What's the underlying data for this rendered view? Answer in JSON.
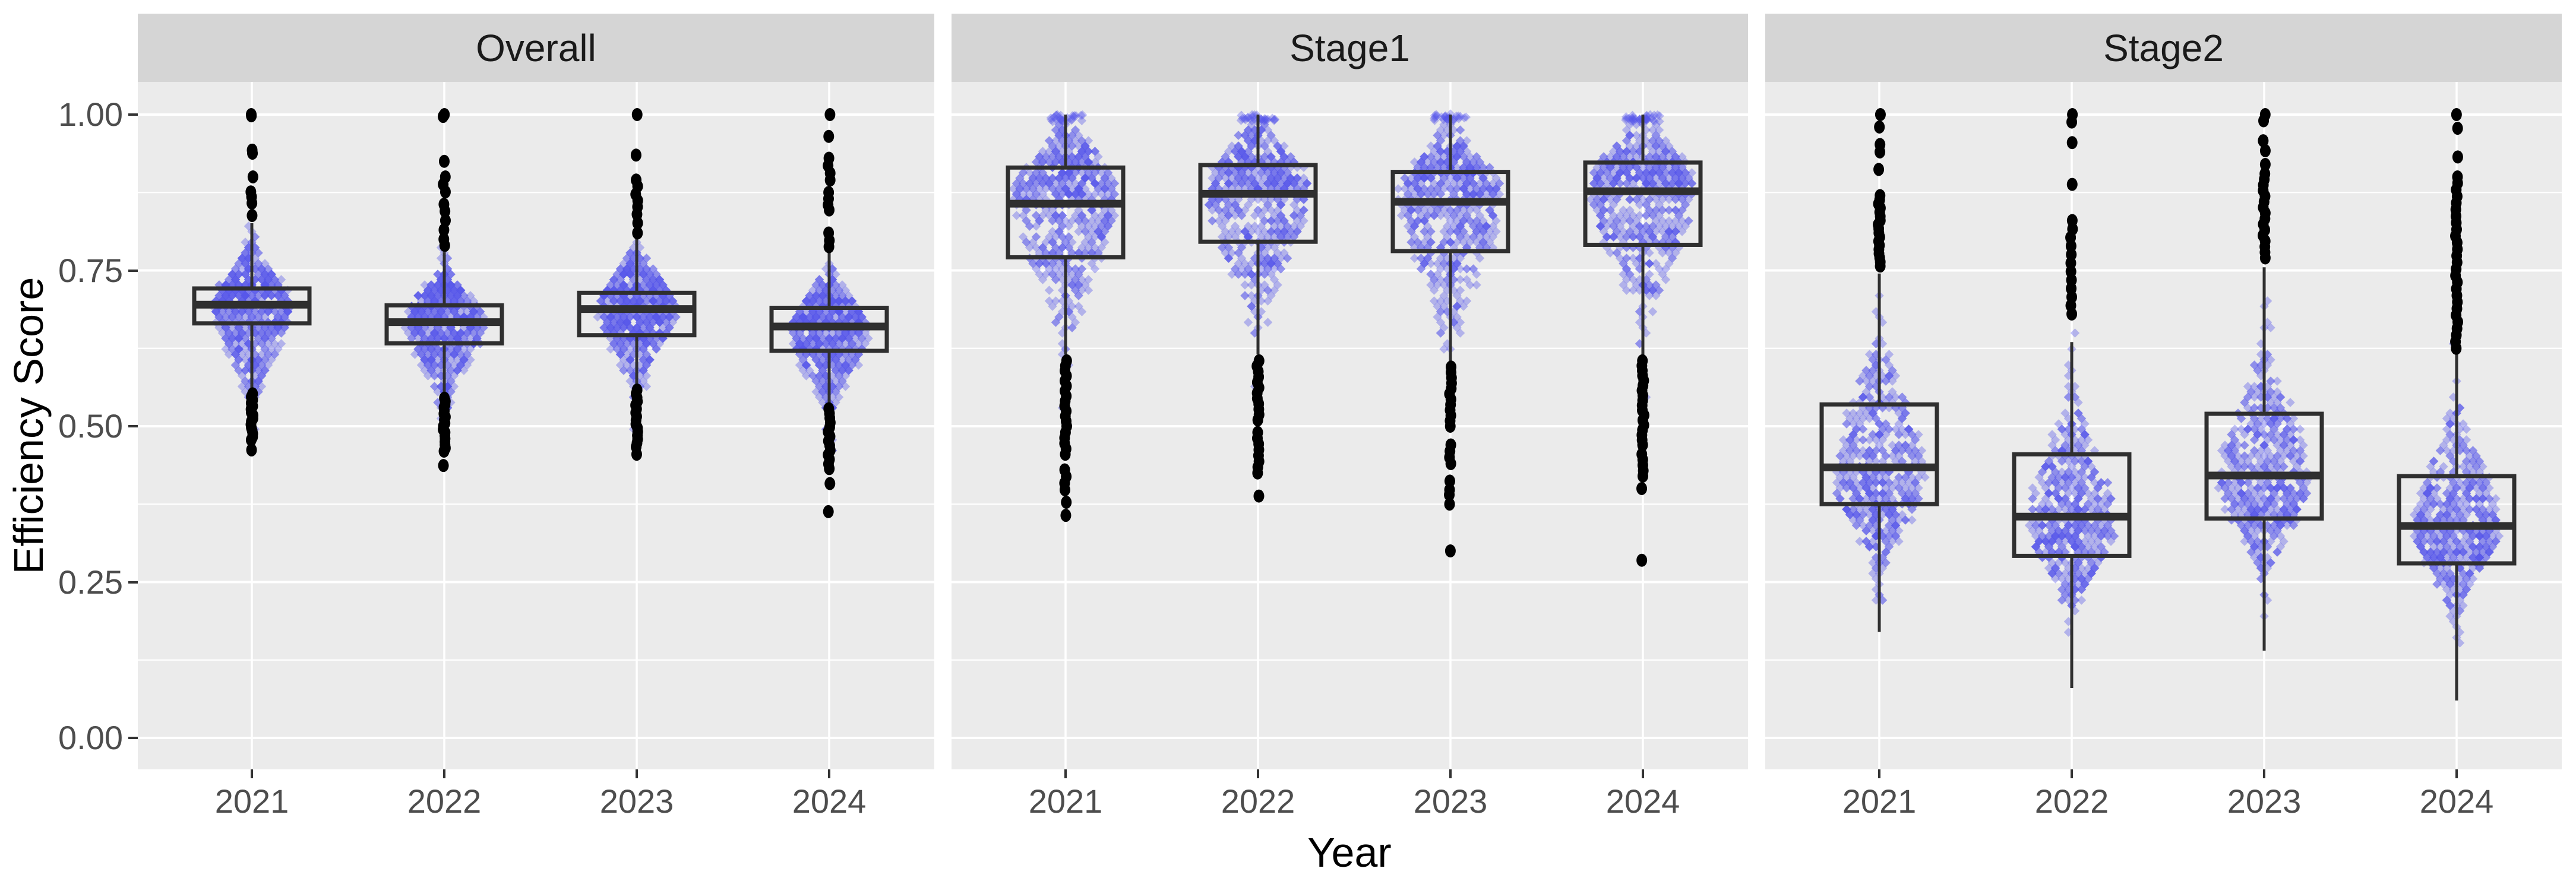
{
  "chart_data": {
    "type": "boxplot-beeswarm-faceted",
    "xlabel": "Year",
    "ylabel": "Efficiency Score",
    "categories": [
      "2021",
      "2022",
      "2023",
      "2024"
    ],
    "ylim": [
      0,
      1
    ],
    "yticks": [
      0.0,
      0.25,
      0.5,
      0.75,
      1.0
    ],
    "ytick_labels": [
      "0.00",
      "0.25",
      "0.50",
      "0.75",
      "1.00"
    ],
    "yminor": [
      0.125,
      0.375,
      0.625,
      0.875
    ],
    "grid": "white-on-gray, major and minor horizontal, vertical line at each category",
    "legend": "none",
    "panels": [
      {
        "facet": "Overall",
        "groups": [
          {
            "year": "2021",
            "box": {
              "q1": 0.665,
              "median": 0.695,
              "q3": 0.721,
              "whisker_low": 0.551,
              "whisker_high": 0.826
            },
            "cloud": {
              "mode": 0.69,
              "spread_up": 0.045,
              "spread_down": 0.06,
              "min": 0.465,
              "max": 0.835,
              "half_width": 66,
              "n": 640
            },
            "outliers_high": {
              "singles": [
                1.0,
                0.998,
                0.943,
                0.938,
                0.9,
                0.876,
                0.868,
                0.858,
                0.838
              ],
              "ranges": []
            },
            "outliers_low": {
              "singles": [
                0.462
              ],
              "ranges": [
                {
                  "from": 0.552,
                  "to": 0.478,
                  "n": 16
                }
              ]
            }
          },
          {
            "year": "2022",
            "box": {
              "q1": 0.633,
              "median": 0.667,
              "q3": 0.694,
              "whisker_low": 0.545,
              "whisker_high": 0.779
            },
            "cloud": {
              "mode": 0.665,
              "spread_up": 0.04,
              "spread_down": 0.055,
              "min": 0.45,
              "max": 0.79,
              "half_width": 64,
              "n": 640
            },
            "outliers_high": {
              "singles": [
                1.0,
                0.997,
                0.925,
                0.9,
                0.888,
                0.876,
                0.856,
                0.845,
                0.83,
                0.815,
                0.8,
                0.79
              ],
              "ranges": []
            },
            "outliers_low": {
              "singles": [
                0.437
              ],
              "ranges": [
                {
                  "from": 0.545,
                  "to": 0.46,
                  "n": 18
                }
              ]
            }
          },
          {
            "year": "2023",
            "box": {
              "q1": 0.646,
              "median": 0.688,
              "q3": 0.714,
              "whisker_low": 0.558,
              "whisker_high": 0.81
            },
            "cloud": {
              "mode": 0.69,
              "spread_up": 0.042,
              "spread_down": 0.058,
              "min": 0.465,
              "max": 0.82,
              "half_width": 64,
              "n": 640
            },
            "outliers_high": {
              "singles": [
                1.0,
                0.935,
                0.895,
                0.885,
                0.872,
                0.862,
                0.852,
                0.84,
                0.826,
                0.81
              ],
              "ranges": []
            },
            "outliers_low": {
              "singles": [
                0.455
              ],
              "ranges": [
                {
                  "from": 0.558,
                  "to": 0.467,
                  "n": 16
                }
              ]
            }
          },
          {
            "year": "2024",
            "box": {
              "q1": 0.621,
              "median": 0.66,
              "q3": 0.69,
              "whisker_low": 0.528,
              "whisker_high": 0.805
            },
            "cloud": {
              "mode": 0.655,
              "spread_up": 0.042,
              "spread_down": 0.058,
              "min": 0.43,
              "max": 0.815,
              "half_width": 64,
              "n": 640
            },
            "outliers_high": {
              "singles": [
                1.0,
                0.965,
                0.93,
                0.918,
                0.906,
                0.895,
                0.875,
                0.865,
                0.855,
                0.847,
                0.81,
                0.798,
                0.788
              ],
              "ranges": []
            },
            "outliers_low": {
              "singles": [
                0.408,
                0.363
              ],
              "ranges": [
                {
                  "from": 0.528,
                  "to": 0.432,
                  "n": 14
                }
              ]
            }
          }
        ]
      },
      {
        "facet": "Stage1",
        "groups": [
          {
            "year": "2021",
            "box": {
              "q1": 0.771,
              "median": 0.857,
              "q3": 0.915,
              "whisker_low": 0.615,
              "whisker_high": 1.0
            },
            "cloud": {
              "mode": 0.87,
              "spread_up": 0.055,
              "spread_down": 0.1,
              "min": 0.46,
              "max": 1.0,
              "half_width": 88,
              "n": 620
            },
            "cap_cluster": {
              "y": 1.0,
              "n": 26,
              "half_width": 30
            },
            "outliers_high": {
              "singles": [],
              "ranges": []
            },
            "outliers_low": {
              "singles": [
                0.378,
                0.357
              ],
              "ranges": [
                {
                  "from": 0.605,
                  "to": 0.5,
                  "n": 14
                },
                {
                  "from": 0.49,
                  "to": 0.455,
                  "n": 5
                },
                {
                  "from": 0.43,
                  "to": 0.398,
                  "n": 4
                }
              ]
            }
          },
          {
            "year": "2022",
            "box": {
              "q1": 0.796,
              "median": 0.873,
              "q3": 0.919,
              "whisker_low": 0.615,
              "whisker_high": 1.0
            },
            "cloud": {
              "mode": 0.88,
              "spread_up": 0.05,
              "spread_down": 0.095,
              "min": 0.47,
              "max": 1.0,
              "half_width": 86,
              "n": 620
            },
            "cap_cluster": {
              "y": 1.0,
              "n": 24,
              "half_width": 30
            },
            "outliers_high": {
              "singles": [],
              "ranges": []
            },
            "outliers_low": {
              "singles": [
                0.388
              ],
              "ranges": [
                {
                  "from": 0.605,
                  "to": 0.51,
                  "n": 12
                },
                {
                  "from": 0.49,
                  "to": 0.425,
                  "n": 8
                }
              ]
            }
          },
          {
            "year": "2023",
            "box": {
              "q1": 0.781,
              "median": 0.86,
              "q3": 0.908,
              "whisker_low": 0.6,
              "whisker_high": 1.0
            },
            "cloud": {
              "mode": 0.87,
              "spread_up": 0.05,
              "spread_down": 0.1,
              "min": 0.46,
              "max": 1.0,
              "half_width": 86,
              "n": 620
            },
            "cap_cluster": {
              "y": 1.0,
              "n": 22,
              "half_width": 30
            },
            "outliers_high": {
              "singles": [],
              "ranges": []
            },
            "outliers_low": {
              "singles": [
                0.412,
                0.398,
                0.39,
                0.375,
                0.3
              ],
              "ranges": [
                {
                  "from": 0.595,
                  "to": 0.5,
                  "n": 12
                },
                {
                  "from": 0.47,
                  "to": 0.44,
                  "n": 4
                }
              ]
            }
          },
          {
            "year": "2024",
            "box": {
              "q1": 0.791,
              "median": 0.877,
              "q3": 0.923,
              "whisker_low": 0.61,
              "whisker_high": 1.0
            },
            "cloud": {
              "mode": 0.885,
              "spread_up": 0.048,
              "spread_down": 0.095,
              "min": 0.45,
              "max": 1.0,
              "half_width": 88,
              "n": 620
            },
            "cap_cluster": {
              "y": 1.0,
              "n": 28,
              "half_width": 30
            },
            "outliers_high": {
              "singles": [],
              "ranges": []
            },
            "outliers_low": {
              "singles": [
                0.4,
                0.285
              ],
              "ranges": [
                {
                  "from": 0.605,
                  "to": 0.47,
                  "n": 18
                },
                {
                  "from": 0.455,
                  "to": 0.42,
                  "n": 5
                }
              ]
            }
          }
        ]
      },
      {
        "facet": "Stage2",
        "groups": [
          {
            "year": "2021",
            "box": {
              "q1": 0.375,
              "median": 0.434,
              "q3": 0.535,
              "whisker_low": 0.17,
              "whisker_high": 0.745
            },
            "cloud": {
              "mode": 0.42,
              "spread_up": 0.1,
              "spread_down": 0.07,
              "min": 0.17,
              "max": 0.765,
              "half_width": 74,
              "n": 560
            },
            "outliers_high": {
              "singles": [
                1.0,
                0.98,
                0.952,
                0.94,
                0.912
              ],
              "ranges": [
                {
                  "from": 0.87,
                  "to": 0.757,
                  "n": 18
                }
              ]
            },
            "outliers_low": {
              "singles": [],
              "ranges": []
            }
          },
          {
            "year": "2022",
            "box": {
              "q1": 0.292,
              "median": 0.355,
              "q3": 0.455,
              "whisker_low": 0.08,
              "whisker_high": 0.635
            },
            "cloud": {
              "mode": 0.345,
              "spread_up": 0.09,
              "spread_down": 0.06,
              "min": 0.08,
              "max": 0.66,
              "half_width": 72,
              "n": 560
            },
            "outliers_high": {
              "singles": [
                1.0,
                0.988,
                0.955,
                0.888
              ],
              "ranges": [
                {
                  "from": 0.83,
                  "to": 0.68,
                  "n": 12
                }
              ]
            },
            "outliers_low": {
              "singles": [],
              "ranges": []
            }
          },
          {
            "year": "2023",
            "box": {
              "q1": 0.352,
              "median": 0.421,
              "q3": 0.52,
              "whisker_low": 0.14,
              "whisker_high": 0.755
            },
            "cloud": {
              "mode": 0.41,
              "spread_up": 0.1,
              "spread_down": 0.065,
              "min": 0.14,
              "max": 0.77,
              "half_width": 74,
              "n": 560
            },
            "outliers_high": {
              "singles": [
                1.0,
                0.99,
                0.958,
                0.942,
                0.92
              ],
              "ranges": [
                {
                  "from": 0.905,
                  "to": 0.77,
                  "n": 16
                }
              ]
            },
            "outliers_low": {
              "singles": [],
              "ranges": []
            }
          },
          {
            "year": "2024",
            "box": {
              "q1": 0.28,
              "median": 0.34,
              "q3": 0.42,
              "whisker_low": 0.06,
              "whisker_high": 0.62
            },
            "cloud": {
              "mode": 0.335,
              "spread_up": 0.085,
              "spread_down": 0.06,
              "min": 0.06,
              "max": 0.64,
              "half_width": 72,
              "n": 560
            },
            "outliers_high": {
              "singles": [
                1.0,
                0.978,
                0.932,
                0.9
              ],
              "ranges": [
                {
                  "from": 0.89,
                  "to": 0.625,
                  "n": 26
                }
              ]
            },
            "outliers_low": {
              "singles": [],
              "ranges": []
            }
          }
        ]
      }
    ],
    "style": {
      "panel_bg": "#ebebeb",
      "strip_bg": "#d5d5d5",
      "strip_text": "#1a1a1a",
      "grid_color": "#ffffff",
      "box_stroke": "#2f2f2f",
      "point_color": "rgba(88,88,235,0.38)",
      "outlier_color": "#000000",
      "tick_text": "#4d4d4d",
      "axis_title_text": "#000000",
      "tick_mark": "#333333"
    }
  },
  "layout_note": "three facet panels sharing one y axis; x tick labels under every panel"
}
